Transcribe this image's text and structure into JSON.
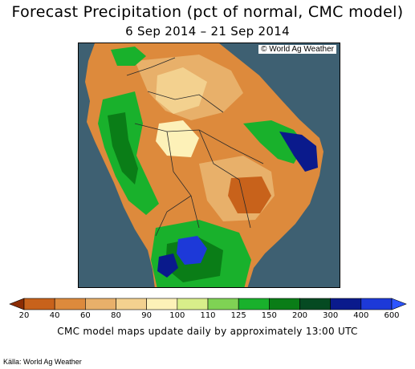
{
  "header": {
    "title": "Forecast Precipitation (pct of normal, CMC model)",
    "subtitle": "6 Sep 2014 – 21 Sep 2014"
  },
  "map": {
    "credit": "© World Ag Weather",
    "ocean_color": "#3e6072",
    "border_color": "#2a2a2a"
  },
  "legend": {
    "ticks": [
      "20",
      "40",
      "60",
      "80",
      "90",
      "100",
      "110",
      "125",
      "150",
      "200",
      "300",
      "400",
      "600"
    ],
    "colors": [
      "#8c2d04",
      "#c8621b",
      "#dd8a3c",
      "#e8b06a",
      "#f3d18f",
      "#fdf1b8",
      "#d8ee8a",
      "#7fd254",
      "#19b12c",
      "#0a7d17",
      "#054a22",
      "#0a1a8c",
      "#1d39d8",
      "#2d55ff"
    ]
  },
  "footer": {
    "note": "CMC model maps update daily by approximately 13:00 UTC",
    "source": "Källa: World Ag Weather"
  }
}
